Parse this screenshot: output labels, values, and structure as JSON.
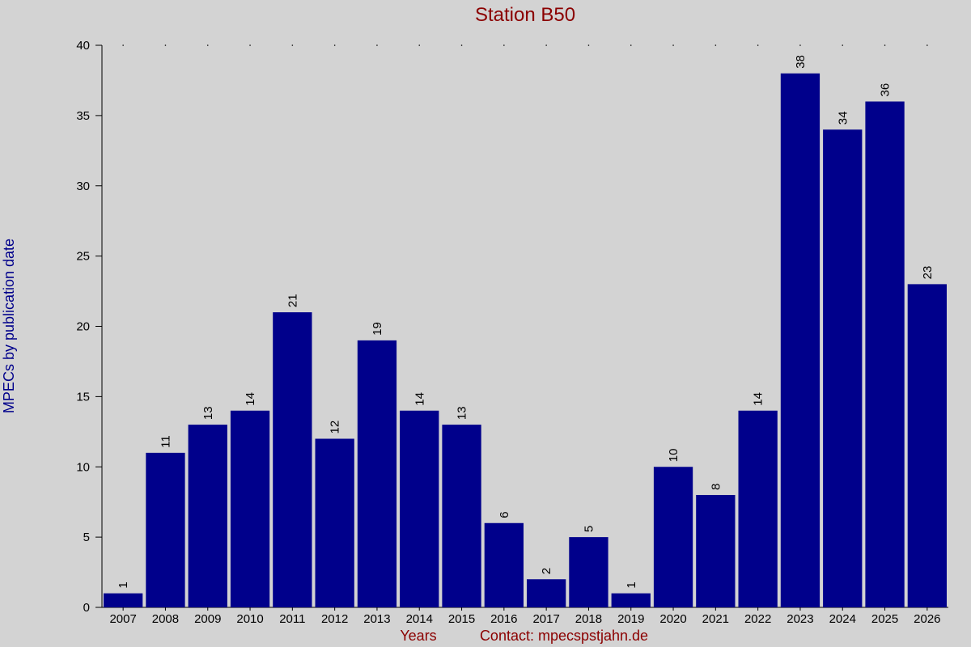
{
  "chart_data": {
    "type": "bar",
    "title": "Station B50",
    "xlabel": "Years",
    "ylabel": "MPECs by publication date",
    "contact": "Contact: mpecspstjahn.de",
    "categories": [
      "2007",
      "2008",
      "2009",
      "2010",
      "2011",
      "2012",
      "2013",
      "2014",
      "2015",
      "2016",
      "2017",
      "2018",
      "2019",
      "2020",
      "2021",
      "2022",
      "2023",
      "2024",
      "2025",
      "2026"
    ],
    "values": [
      1,
      11,
      13,
      14,
      21,
      12,
      19,
      14,
      13,
      6,
      2,
      5,
      1,
      10,
      8,
      14,
      38,
      34,
      36,
      23
    ],
    "ylim": [
      0,
      40
    ],
    "yticks": [
      0,
      5,
      10,
      15,
      20,
      25,
      30,
      35,
      40
    ],
    "bar_color": "#00008b",
    "title_color": "#8b0000",
    "ylabel_color": "#00008b",
    "background": "#d3d3d3",
    "data_labels": true,
    "grid": false
  }
}
